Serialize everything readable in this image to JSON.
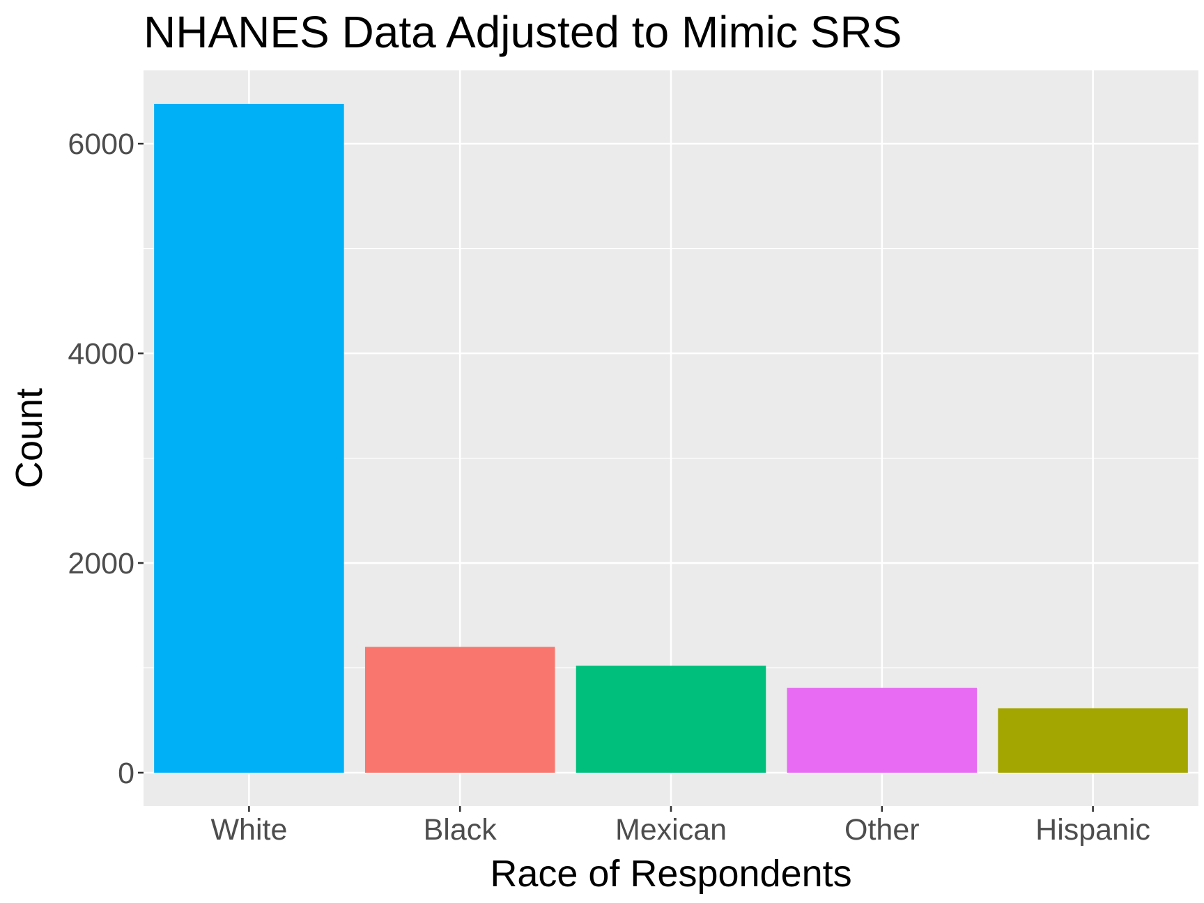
{
  "chart_data": {
    "type": "bar",
    "title": "NHANES Data Adjusted to Mimic SRS",
    "xlabel": "Race of Respondents",
    "ylabel": "Count",
    "categories": [
      "White",
      "Black",
      "Mexican",
      "Other",
      "Hispanic"
    ],
    "values": [
      6380,
      1200,
      1020,
      810,
      615
    ],
    "colors": [
      "#00B0F6",
      "#F8766D",
      "#00BF7D",
      "#E76BF3",
      "#A3A500"
    ],
    "y_ticks": [
      0,
      2000,
      4000,
      6000
    ],
    "y_tick_labels": [
      "0",
      "2000",
      "4000",
      "6000"
    ],
    "ylim": [
      -319,
      6699
    ],
    "panel_background": "#EBEBEB",
    "grid_color": "#FFFFFF",
    "grid": true,
    "legend": "none"
  }
}
